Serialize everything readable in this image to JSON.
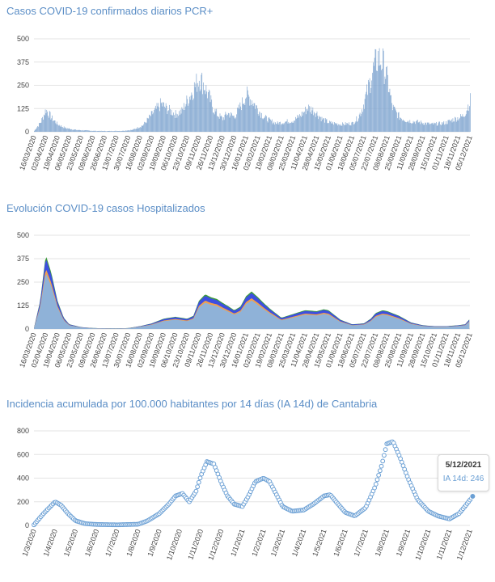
{
  "colors": {
    "title": "#5b8ec6",
    "bars": "#7ea4cf",
    "grid": "#e3e3e3",
    "tick": "#444444",
    "hosp_blue": "#3d4fe0",
    "hosp_green": "#3c9a3c",
    "hosp_orange": "#f0a050",
    "hosp_base": "#8fb2d8",
    "ia_point": "#6a9fd4"
  },
  "chart_data": [
    {
      "type": "bar",
      "title": "Casos COVID-19 confirmados diarios PCR+",
      "xlabel": "",
      "ylabel": "",
      "ylim": [
        0,
        500
      ],
      "yticks": [
        "0",
        "125",
        "250",
        "375",
        "500"
      ],
      "grid": true,
      "x_tick_labels": [
        "16/03/2020",
        "02/04/2020",
        "19/04/2020",
        "06/05/2020",
        "23/05/2020",
        "09/06/2020",
        "26/06/2020",
        "13/07/2020",
        "30/07/2020",
        "16/08/2020",
        "02/09/2020",
        "19/09/2020",
        "06/10/2020",
        "23/10/2020",
        "09/11/2020",
        "26/11/2020",
        "13/12/2020",
        "30/12/2020",
        "16/01/2021",
        "02/02/2021",
        "19/02/2021",
        "08/03/2021",
        "25/03/2021",
        "11/04/2021",
        "28/04/2021",
        "15/05/2021",
        "01/06/2021",
        "18/06/2021",
        "05/07/2021",
        "22/07/2021",
        "08/08/2021",
        "25/08/2021",
        "11/09/2021",
        "28/09/2021",
        "15/10/2021",
        "01/11/2021",
        "18/11/2021",
        "05/12/2021"
      ],
      "x": [
        "16/03/2020",
        "26/03/2020",
        "02/04/2020",
        "10/04/2020",
        "19/04/2020",
        "30/04/2020",
        "15/05/2020",
        "10/06/2020",
        "30/06/2020",
        "20/07/2020",
        "05/08/2020",
        "20/08/2020",
        "01/09/2020",
        "15/09/2020",
        "25/09/2020",
        "06/10/2020",
        "15/10/2020",
        "23/10/2020",
        "01/11/2020",
        "09/11/2020",
        "15/11/2020",
        "22/11/2020",
        "30/11/2020",
        "06/12/2020",
        "13/12/2020",
        "20/12/2020",
        "30/12/2020",
        "08/01/2021",
        "16/01/2021",
        "24/01/2021",
        "02/02/2021",
        "10/02/2021",
        "19/02/2021",
        "01/03/2021",
        "15/03/2021",
        "25/03/2021",
        "05/04/2021",
        "15/04/2021",
        "25/04/2021",
        "05/05/2021",
        "15/05/2021",
        "01/06/2021",
        "18/06/2021",
        "25/06/2021",
        "01/07/2021",
        "10/07/2021",
        "18/07/2021",
        "25/07/2021",
        "01/08/2021",
        "08/08/2021",
        "15/08/2021",
        "25/08/2021",
        "05/09/2021",
        "15/09/2021",
        "25/09/2021",
        "10/10/2021",
        "25/10/2021",
        "01/11/2021",
        "10/11/2021",
        "18/11/2021",
        "25/11/2021",
        "30/11/2021",
        "05/12/2021"
      ],
      "series": [
        {
          "values": [
            5,
            55,
            120,
            75,
            40,
            20,
            10,
            5,
            4,
            5,
            10,
            35,
            90,
            150,
            120,
            95,
            110,
            170,
            230,
            290,
            260,
            200,
            120,
            90,
            70,
            100,
            80,
            140,
            200,
            170,
            120,
            80,
            60,
            45,
            55,
            60,
            90,
            130,
            110,
            70,
            50,
            40,
            45,
            70,
            110,
            220,
            330,
            400,
            370,
            270,
            130,
            80,
            60,
            55,
            50,
            40,
            45,
            50,
            65,
            75,
            85,
            120,
            170
          ]
        }
      ]
    },
    {
      "type": "area",
      "title": "Evolución COVID-19 casos  Hospitalizados",
      "xlabel": "",
      "ylabel": "",
      "ylim": [
        0,
        500
      ],
      "yticks": [
        "0",
        "125",
        "250",
        "375",
        "500"
      ],
      "grid": true,
      "x_tick_labels": [
        "16/03/2020",
        "02/04/2020",
        "19/04/2020",
        "06/05/2020",
        "23/05/2020",
        "09/06/2020",
        "26/06/2020",
        "13/07/2020",
        "30/07/2020",
        "16/08/2020",
        "02/09/2020",
        "19/09/2020",
        "06/10/2020",
        "23/10/2020",
        "09/11/2020",
        "26/11/2020",
        "13/12/2020",
        "30/12/2020",
        "16/01/2021",
        "02/02/2021",
        "19/02/2021",
        "08/03/2021",
        "25/03/2021",
        "11/04/2021",
        "28/04/2021",
        "15/05/2021",
        "01/06/2021",
        "18/06/2021",
        "05/07/2021",
        "22/07/2021",
        "08/08/2021",
        "25/08/2021",
        "11/09/2021",
        "28/09/2021",
        "15/10/2021",
        "01/11/2021",
        "18/11/2021",
        "05/12/2021"
      ],
      "x": [
        "16/03/2020",
        "25/03/2020",
        "02/04/2020",
        "10/04/2020",
        "19/04/2020",
        "28/04/2020",
        "06/05/2020",
        "23/05/2020",
        "09/06/2020",
        "13/07/2020",
        "30/07/2020",
        "16/08/2020",
        "02/09/2020",
        "19/09/2020",
        "06/10/2020",
        "23/10/2020",
        "01/11/2020",
        "09/11/2020",
        "18/11/2020",
        "26/11/2020",
        "05/12/2020",
        "13/12/2020",
        "22/12/2020",
        "30/12/2020",
        "08/01/2021",
        "16/01/2021",
        "24/01/2021",
        "02/02/2021",
        "10/02/2021",
        "19/02/2021",
        "08/03/2021",
        "25/03/2021",
        "11/04/2021",
        "28/04/2021",
        "08/05/2021",
        "15/05/2021",
        "01/06/2021",
        "18/06/2021",
        "05/07/2021",
        "15/07/2021",
        "22/07/2021",
        "01/08/2021",
        "08/08/2021",
        "25/08/2021",
        "11/09/2021",
        "28/09/2021",
        "15/10/2021",
        "01/11/2021",
        "18/11/2021",
        "28/11/2021",
        "05/12/2021"
      ],
      "series": [
        {
          "values": [
            5,
            150,
            395,
            300,
            150,
            60,
            25,
            10,
            5,
            3,
            5,
            15,
            30,
            55,
            65,
            55,
            70,
            150,
            185,
            170,
            160,
            140,
            120,
            100,
            120,
            175,
            200,
            170,
            140,
            110,
            60,
            80,
            100,
            95,
            105,
            100,
            50,
            25,
            30,
            55,
            85,
            100,
            95,
            70,
            35,
            20,
            15,
            15,
            20,
            25,
            55
          ]
        }
      ]
    },
    {
      "type": "scatter",
      "title": "Incidencia acumulada por 100.000 habitantes por 14 días (IA 14d) de Cantabria",
      "xlabel": "",
      "ylabel": "",
      "ylim": [
        0,
        800
      ],
      "yticks": [
        "0",
        "200",
        "400",
        "600",
        "800"
      ],
      "grid": true,
      "x_tick_labels": [
        "1/3/2020",
        "1/4/2020",
        "1/5/2020",
        "1/6/2020",
        "1/7/2020",
        "1/8/2020",
        "1/9/2020",
        "1/10/2020",
        "1/11/2020",
        "1/12/2020",
        "1/1/2021",
        "1/2/2021",
        "1/3/2021",
        "1/4/2021",
        "1/5/2021",
        "1/6/2021",
        "1/7/2021",
        "1/8/2021",
        "1/9/2021",
        "1/10/2021",
        "1/11/2021",
        "1/12/2021"
      ],
      "x": [
        "1/3/2020",
        "15/3/2020",
        "1/4/2020",
        "10/4/2020",
        "20/4/2020",
        "1/5/2020",
        "15/5/2020",
        "1/6/2020",
        "1/7/2020",
        "1/8/2020",
        "15/8/2020",
        "1/9/2020",
        "15/9/2020",
        "25/9/2020",
        "5/10/2020",
        "15/10/2020",
        "25/10/2020",
        "1/11/2020",
        "10/11/2020",
        "20/11/2020",
        "25/11/2020",
        "1/12/2020",
        "10/12/2020",
        "20/12/2020",
        "1/1/2021",
        "10/1/2021",
        "20/1/2021",
        "1/2/2021",
        "10/2/2021",
        "20/2/2021",
        "1/3/2021",
        "15/3/2021",
        "1/4/2021",
        "15/4/2021",
        "1/5/2021",
        "10/5/2021",
        "20/5/2021",
        "1/6/2021",
        "15/6/2021",
        "1/7/2021",
        "15/7/2021",
        "25/7/2021",
        "1/8/2021",
        "10/8/2021",
        "20/8/2021",
        "1/9/2021",
        "15/9/2021",
        "1/10/2021",
        "15/10/2021",
        "1/11/2021",
        "15/11/2021",
        "25/11/2021",
        "5/12/2021"
      ],
      "series": [
        {
          "values": [
            5,
            100,
            200,
            170,
            100,
            40,
            15,
            8,
            5,
            10,
            40,
            100,
            180,
            250,
            270,
            200,
            290,
            420,
            540,
            520,
            450,
            360,
            250,
            180,
            160,
            250,
            370,
            400,
            370,
            260,
            160,
            120,
            130,
            180,
            250,
            260,
            190,
            110,
            80,
            150,
            330,
            520,
            690,
            710,
            580,
            400,
            220,
            120,
            80,
            55,
            100,
            170,
            246
          ]
        }
      ],
      "tooltip": {
        "date": "5/12/2021",
        "label": "IA 14d: 246"
      }
    }
  ]
}
